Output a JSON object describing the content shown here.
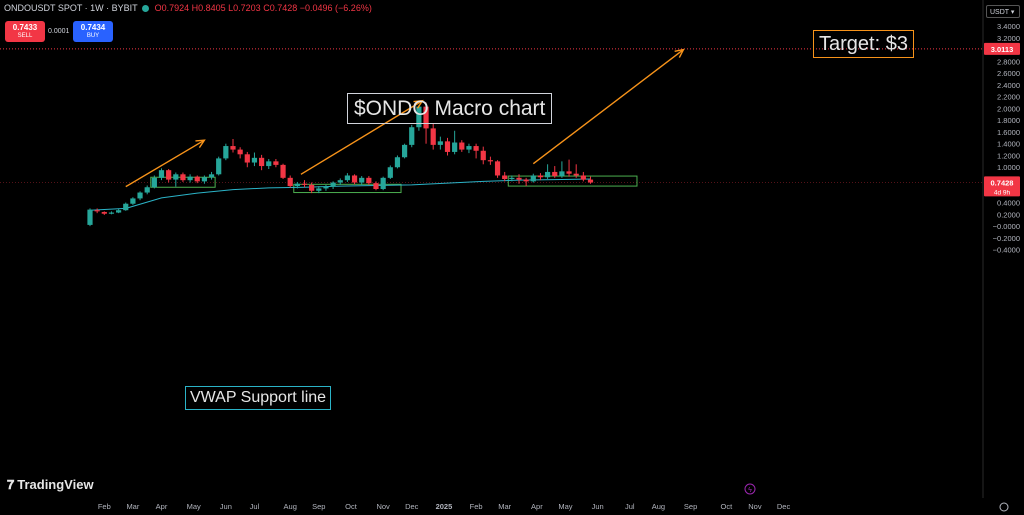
{
  "header": {
    "symbol": "ONDOUSDT SPOT · 1W · BYBIT",
    "open": "O0.7924",
    "high": "H0.8405",
    "low": "L0.7203",
    "close": "C0.7428",
    "change": "−0.0496 (−6.26%)"
  },
  "trade": {
    "sell_price": "0.7433",
    "sell_label": "SELL",
    "buy_price": "0.7434",
    "buy_label": "BUY",
    "spread": "0.0001"
  },
  "currency": "USDT",
  "annotations": {
    "target": "Target: $3",
    "title": "$ONDO Macro chart",
    "vwap": "VWAP Support line"
  },
  "brand": "TradingView",
  "colors": {
    "up": "#26a69a",
    "down": "#f23645",
    "vwap": "#2bb3c7",
    "arrow": "#f7931a",
    "box": "#4caf50",
    "price_line": "#f23645"
  },
  "chart_data": {
    "type": "candlestick",
    "interval": "1W",
    "y_ticks": [
      "3.4000",
      "3.2000",
      "3.0000",
      "2.8000",
      "2.6000",
      "2.4000",
      "2.2000",
      "2.0000",
      "1.8000",
      "1.6000",
      "1.4000",
      "1.2000",
      "1.0000",
      "0.8000",
      "0.6000",
      "0.4000",
      "0.2000",
      "−0.0000",
      "−0.2000",
      "−0.4000"
    ],
    "ylim": [
      -0.45,
      3.45
    ],
    "x_ticks": [
      "Feb",
      "Mar",
      "Apr",
      "May",
      "Jun",
      "Jul",
      "Aug",
      "Sep",
      "Oct",
      "Nov",
      "Dec",
      "2025",
      "Feb",
      "Mar",
      "Apr",
      "May",
      "Jun",
      "Jul",
      "Aug",
      "Sep",
      "Oct",
      "Nov",
      "Dec"
    ],
    "x_tick_weeks": [
      2,
      6,
      10,
      14.5,
      19,
      23,
      28,
      32,
      36.5,
      41,
      45,
      49.5,
      54,
      58,
      62.5,
      66.5,
      71,
      75.5,
      79.5,
      84,
      89,
      93,
      97
    ],
    "target_level": 3.0113,
    "target_label": "3.0113",
    "last_price": 0.7428,
    "last_label": "0.7428",
    "countdown": "4d 9h",
    "candles": [
      [
        0.02,
        0.28,
        0.0,
        0.3
      ],
      [
        0.27,
        0.25,
        0.22,
        0.3
      ],
      [
        0.24,
        0.21,
        0.19,
        0.25
      ],
      [
        0.21,
        0.23,
        0.2,
        0.25
      ],
      [
        0.23,
        0.27,
        0.22,
        0.29
      ],
      [
        0.27,
        0.38,
        0.26,
        0.4
      ],
      [
        0.38,
        0.47,
        0.36,
        0.49
      ],
      [
        0.47,
        0.57,
        0.44,
        0.59
      ],
      [
        0.57,
        0.66,
        0.54,
        0.69
      ],
      [
        0.66,
        0.82,
        0.64,
        0.86
      ],
      [
        0.82,
        0.95,
        0.78,
        0.98
      ],
      [
        0.95,
        0.79,
        0.74,
        0.97
      ],
      [
        0.79,
        0.88,
        0.67,
        0.91
      ],
      [
        0.88,
        0.78,
        0.75,
        0.91
      ],
      [
        0.78,
        0.84,
        0.74,
        0.88
      ],
      [
        0.84,
        0.76,
        0.73,
        0.86
      ],
      [
        0.76,
        0.83,
        0.72,
        0.86
      ],
      [
        0.83,
        0.88,
        0.79,
        0.92
      ],
      [
        0.88,
        1.15,
        0.86,
        1.18
      ],
      [
        1.15,
        1.36,
        1.12,
        1.4
      ],
      [
        1.36,
        1.3,
        1.25,
        1.48
      ],
      [
        1.3,
        1.22,
        1.15,
        1.34
      ],
      [
        1.22,
        1.08,
        1.0,
        1.26
      ],
      [
        1.08,
        1.16,
        1.02,
        1.25
      ],
      [
        1.16,
        1.02,
        0.95,
        1.21
      ],
      [
        1.02,
        1.1,
        0.97,
        1.14
      ],
      [
        1.1,
        1.04,
        1.0,
        1.14
      ],
      [
        1.04,
        0.82,
        0.8,
        1.06
      ],
      [
        0.82,
        0.68,
        0.65,
        0.86
      ],
      [
        0.68,
        0.72,
        0.64,
        0.75
      ],
      [
        0.72,
        0.7,
        0.66,
        0.78
      ],
      [
        0.7,
        0.6,
        0.56,
        0.74
      ],
      [
        0.6,
        0.64,
        0.56,
        0.68
      ],
      [
        0.64,
        0.67,
        0.6,
        0.7
      ],
      [
        0.67,
        0.74,
        0.63,
        0.76
      ],
      [
        0.74,
        0.78,
        0.7,
        0.81
      ],
      [
        0.78,
        0.86,
        0.75,
        0.9
      ],
      [
        0.86,
        0.74,
        0.71,
        0.88
      ],
      [
        0.74,
        0.82,
        0.7,
        0.85
      ],
      [
        0.82,
        0.73,
        0.7,
        0.85
      ],
      [
        0.73,
        0.63,
        0.61,
        0.76
      ],
      [
        0.63,
        0.82,
        0.61,
        0.84
      ],
      [
        0.82,
        1.0,
        0.8,
        1.03
      ],
      [
        1.0,
        1.17,
        0.98,
        1.2
      ],
      [
        1.17,
        1.38,
        1.15,
        1.4
      ],
      [
        1.38,
        1.68,
        1.34,
        1.72
      ],
      [
        1.68,
        2.03,
        1.62,
        2.06
      ],
      [
        2.03,
        1.66,
        1.4,
        2.1
      ],
      [
        1.66,
        1.38,
        1.3,
        1.74
      ],
      [
        1.38,
        1.44,
        1.3,
        1.52
      ],
      [
        1.44,
        1.26,
        1.2,
        1.5
      ],
      [
        1.26,
        1.42,
        1.22,
        1.62
      ],
      [
        1.42,
        1.3,
        1.26,
        1.46
      ],
      [
        1.3,
        1.36,
        1.24,
        1.4
      ],
      [
        1.36,
        1.28,
        1.15,
        1.4
      ],
      [
        1.28,
        1.12,
        1.05,
        1.35
      ],
      [
        1.12,
        1.1,
        1.04,
        1.18
      ],
      [
        1.1,
        0.86,
        0.82,
        1.12
      ],
      [
        0.86,
        0.8,
        0.76,
        0.92
      ],
      [
        0.8,
        0.82,
        0.76,
        0.86
      ],
      [
        0.82,
        0.79,
        0.72,
        0.88
      ],
      [
        0.79,
        0.76,
        0.68,
        0.82
      ],
      [
        0.76,
        0.86,
        0.74,
        0.89
      ],
      [
        0.86,
        0.83,
        0.78,
        0.9
      ],
      [
        0.83,
        0.92,
        0.8,
        1.05
      ],
      [
        0.92,
        0.85,
        0.82,
        1.02
      ],
      [
        0.85,
        0.93,
        0.82,
        1.1
      ],
      [
        0.93,
        0.89,
        0.84,
        1.13
      ],
      [
        0.89,
        0.86,
        0.82,
        1.05
      ],
      [
        0.86,
        0.79,
        0.76,
        0.92
      ],
      [
        0.79,
        0.74,
        0.72,
        0.84
      ]
    ],
    "vwap": [
      [
        0,
        0.27
      ],
      [
        5,
        0.3
      ],
      [
        10,
        0.48
      ],
      [
        15,
        0.56
      ],
      [
        20,
        0.62
      ],
      [
        25,
        0.65
      ],
      [
        30,
        0.66
      ],
      [
        35,
        0.68
      ],
      [
        40,
        0.69
      ],
      [
        45,
        0.7
      ],
      [
        50,
        0.73
      ],
      [
        55,
        0.76
      ],
      [
        60,
        0.78
      ],
      [
        65,
        0.79
      ],
      [
        70,
        0.8
      ]
    ],
    "consolidation_boxes": [
      {
        "from": 8.5,
        "to": 17.5,
        "low": 0.66,
        "high": 0.83
      },
      {
        "from": 28.5,
        "to": 43.5,
        "low": 0.57,
        "high": 0.71
      },
      {
        "from": 58.5,
        "to": 76.5,
        "low": 0.68,
        "high": 0.85
      }
    ],
    "arrows": [
      {
        "from": [
          5,
          0.67
        ],
        "to": [
          16,
          1.46
        ]
      },
      {
        "from": [
          29.5,
          0.88
        ],
        "to": [
          46.5,
          2.13
        ]
      },
      {
        "from": [
          62,
          1.06
        ],
        "to": [
          83,
          3.0
        ]
      }
    ]
  }
}
